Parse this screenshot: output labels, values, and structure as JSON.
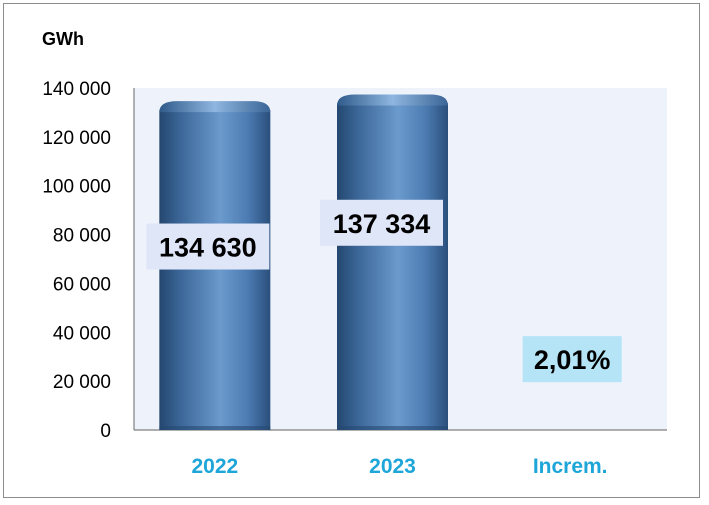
{
  "chart_data": {
    "type": "bar",
    "unit_label": "GWh",
    "categories": [
      "2022",
      "2023",
      "Increm."
    ],
    "values": [
      134630,
      137334,
      null
    ],
    "value_labels": [
      "134 630",
      "137 334",
      "2,01%"
    ],
    "yticks": [
      "0",
      "20 000",
      "40 000",
      "60 000",
      "80 000",
      "100 000",
      "120 000",
      "140 000"
    ],
    "ylim": [
      0,
      140000
    ],
    "grid": false,
    "colors": {
      "bar": "#4f7fb8",
      "bar_dark": "#24476f",
      "plot_bg": "#eef2fb",
      "category_text": "#1ea6d8",
      "value_label_bg": "#dfe6f8",
      "increment_label_bg": "#b4e4f6"
    }
  }
}
